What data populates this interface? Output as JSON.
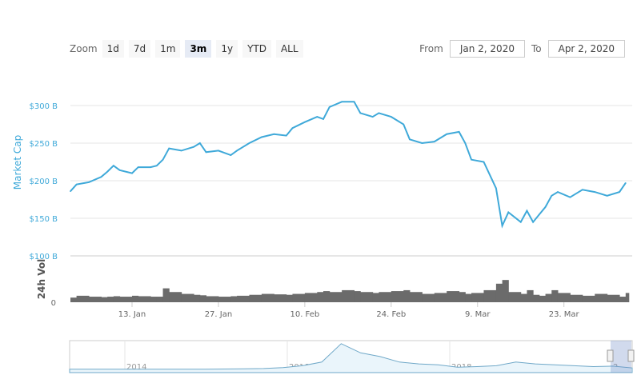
{
  "zoom": {
    "label": "Zoom",
    "buttons": [
      "1d",
      "7d",
      "1m",
      "3m",
      "1y",
      "YTD",
      "ALL"
    ],
    "selected": "3m"
  },
  "range": {
    "from_label": "From",
    "from": "Jan 2, 2020",
    "to_label": "To",
    "to": "Apr 2, 2020"
  },
  "colors": {
    "line": "#3fa9d9",
    "volume": "#6b6b6b",
    "axis_label": "#3fa9d9"
  },
  "chart_data": [
    {
      "type": "line",
      "ylabel": "Market Cap",
      "yticks": [
        "$300 B",
        "$250 B",
        "$200 B",
        "$150 B",
        "$100 B"
      ],
      "ylim": [
        100,
        330
      ],
      "xticks": [
        "13. Jan",
        "27. Jan",
        "10. Feb",
        "24. Feb",
        "9. Mar",
        "23. Mar"
      ],
      "x": [
        "2020-01-02",
        "2020-01-04",
        "2020-01-06",
        "2020-01-08",
        "2020-01-09",
        "2020-01-10",
        "2020-01-11",
        "2020-01-13",
        "2020-01-14",
        "2020-01-16",
        "2020-01-17",
        "2020-01-18",
        "2020-01-19",
        "2020-01-21",
        "2020-01-23",
        "2020-01-24",
        "2020-01-25",
        "2020-01-27",
        "2020-01-29",
        "2020-01-30",
        "2020-02-01",
        "2020-02-03",
        "2020-02-05",
        "2020-02-07",
        "2020-02-08",
        "2020-02-10",
        "2020-02-12",
        "2020-02-13",
        "2020-02-14",
        "2020-02-16",
        "2020-02-18",
        "2020-02-19",
        "2020-02-21",
        "2020-02-22",
        "2020-02-24",
        "2020-02-26",
        "2020-02-27",
        "2020-02-29",
        "2020-03-02",
        "2020-03-04",
        "2020-03-06",
        "2020-03-07",
        "2020-03-08",
        "2020-03-10",
        "2020-03-12",
        "2020-03-13",
        "2020-03-14",
        "2020-03-16",
        "2020-03-17",
        "2020-03-18",
        "2020-03-19",
        "2020-03-20",
        "2020-03-21",
        "2020-03-22",
        "2020-03-24",
        "2020-03-26",
        "2020-03-28",
        "2020-03-30",
        "2020-04-01",
        "2020-04-02"
      ],
      "values": [
        186,
        195,
        198,
        205,
        212,
        220,
        214,
        210,
        218,
        218,
        220,
        228,
        243,
        240,
        245,
        250,
        238,
        240,
        234,
        240,
        250,
        258,
        262,
        260,
        270,
        278,
        285,
        282,
        298,
        305,
        305,
        290,
        285,
        290,
        285,
        275,
        255,
        250,
        252,
        262,
        265,
        250,
        228,
        225,
        190,
        140,
        158,
        145,
        160,
        145,
        155,
        165,
        180,
        185,
        178,
        188,
        185,
        180,
        185,
        197
      ]
    },
    {
      "type": "area",
      "ylabel": "24h Vol",
      "yticks": [
        "0"
      ],
      "values": [
        10,
        14,
        12,
        11,
        12,
        13,
        12,
        14,
        13,
        12,
        12,
        30,
        22,
        18,
        16,
        15,
        13,
        12,
        13,
        14,
        16,
        18,
        17,
        16,
        18,
        20,
        22,
        24,
        22,
        26,
        24,
        22,
        20,
        22,
        24,
        26,
        22,
        18,
        20,
        24,
        22,
        18,
        20,
        26,
        40,
        48,
        22,
        18,
        26,
        16,
        14,
        18,
        26,
        20,
        16,
        14,
        18,
        16,
        12,
        20
      ]
    },
    {
      "type": "area",
      "name": "navigator",
      "xticks": [
        "2014",
        "2016",
        "2018",
        "2..."
      ],
      "values": [
        1,
        1,
        1,
        1,
        1,
        1,
        1,
        1,
        2,
        3,
        5,
        10,
        20,
        40,
        140,
        90,
        70,
        40,
        30,
        25,
        12,
        15,
        20,
        40,
        30,
        25,
        20,
        15,
        18,
        8
      ]
    }
  ]
}
